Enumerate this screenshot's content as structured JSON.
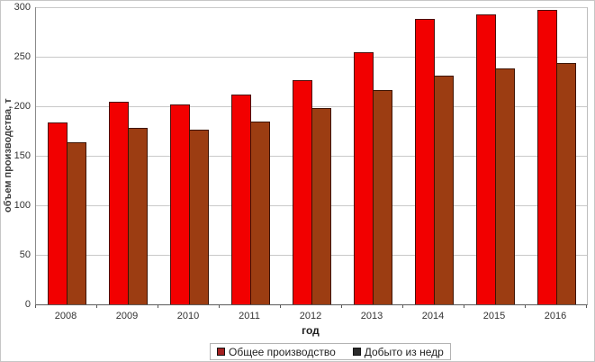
{
  "chart_data": {
    "type": "bar",
    "title": "",
    "xlabel": "год",
    "ylabel": "объем производства, т",
    "categories": [
      "2008",
      "2009",
      "2010",
      "2011",
      "2012",
      "2013",
      "2014",
      "2015",
      "2016"
    ],
    "series": [
      {
        "id": "total",
        "name": "Общее производство",
        "color": "#f20000",
        "border_color": "#4a100c",
        "legend_marker_color": "#a32020",
        "values": [
          184,
          205,
          202,
          212,
          226,
          255,
          288,
          293,
          297
        ]
      },
      {
        "id": "mined",
        "name": "Добыто из недр",
        "color": "#9c3d12",
        "border_color": "#3d1404",
        "legend_marker_color": "#2b2b2b",
        "values": [
          164,
          178,
          176,
          185,
          198,
          216,
          231,
          238,
          244
        ]
      }
    ],
    "ylim": [
      0,
      300
    ],
    "yticks": [
      0,
      50,
      100,
      150,
      200,
      250,
      300
    ],
    "grid": "horizontal",
    "legend_position": "bottom-center",
    "plot_background": "#ffffff",
    "gridline_color": "#c9c9c9"
  }
}
